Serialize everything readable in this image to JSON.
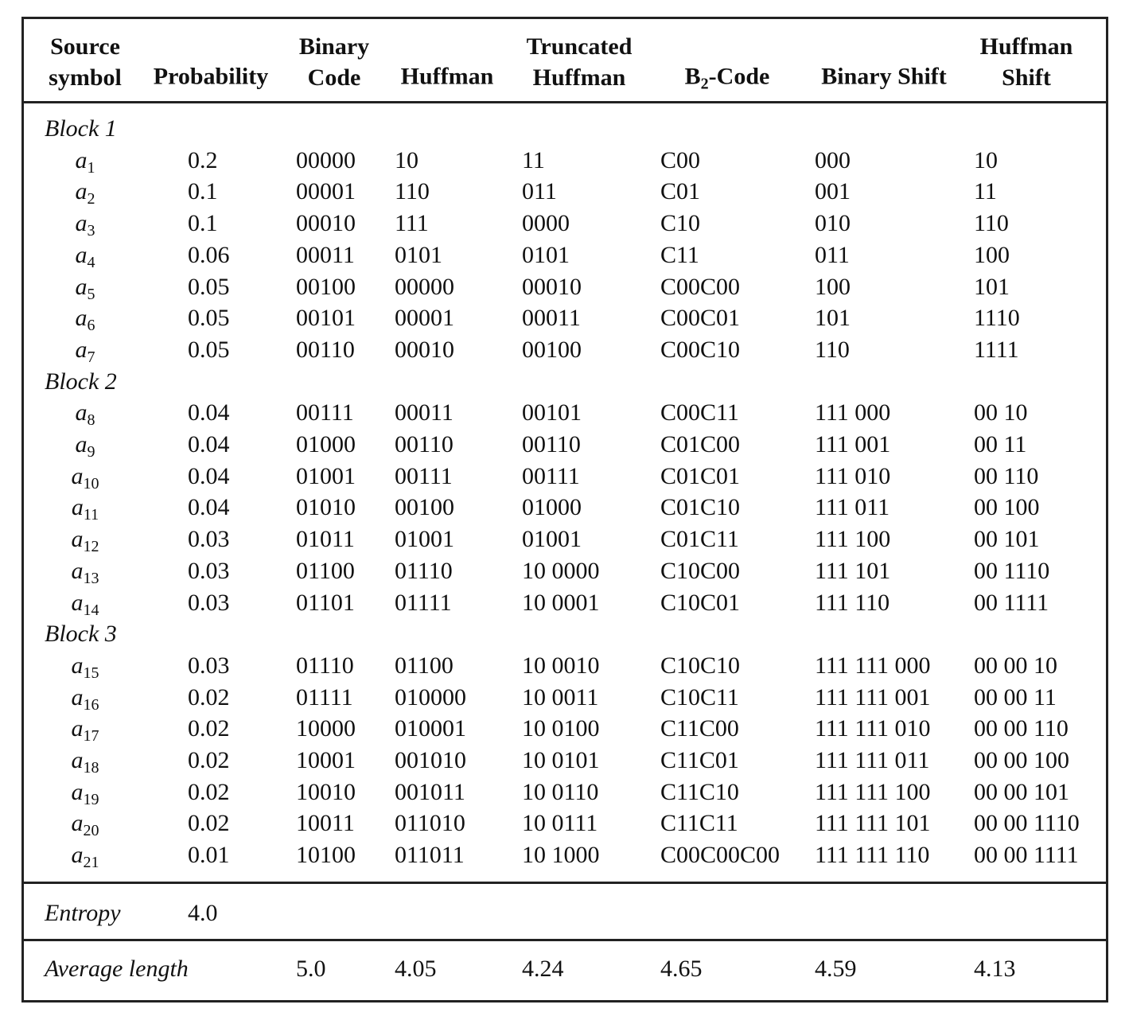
{
  "table": {
    "header": [
      {
        "lines": [
          "Source",
          "symbol"
        ]
      },
      {
        "lines": [
          "Probability"
        ]
      },
      {
        "lines": [
          "Binary",
          "Code"
        ]
      },
      {
        "lines": [
          "Huffman"
        ]
      },
      {
        "lines": [
          "Truncated",
          "Huffman"
        ]
      },
      {
        "base": "B",
        "sub": "2",
        "suffix": "-Code"
      },
      {
        "lines": [
          "Binary Shift"
        ]
      },
      {
        "lines": [
          "Huffman",
          "Shift"
        ]
      }
    ],
    "blocks": [
      {
        "label": "Block 1",
        "rows": [
          {
            "symbol": {
              "base": "a",
              "sub": "1"
            },
            "cells": [
              "0.2",
              "00000",
              "10",
              "11",
              "C00",
              "000",
              "10"
            ]
          },
          {
            "symbol": {
              "base": "a",
              "sub": "2"
            },
            "cells": [
              "0.1",
              "00001",
              "110",
              "011",
              "C01",
              "001",
              "11"
            ]
          },
          {
            "symbol": {
              "base": "a",
              "sub": "3"
            },
            "cells": [
              "0.1",
              "00010",
              "111",
              "0000",
              "C10",
              "010",
              "110"
            ]
          },
          {
            "symbol": {
              "base": "a",
              "sub": "4"
            },
            "cells": [
              "0.06",
              "00011",
              "0101",
              "0101",
              "C11",
              "011",
              "100"
            ]
          },
          {
            "symbol": {
              "base": "a",
              "sub": "5"
            },
            "cells": [
              "0.05",
              "00100",
              "00000",
              "00010",
              "C00C00",
              "100",
              "101"
            ]
          },
          {
            "symbol": {
              "base": "a",
              "sub": "6"
            },
            "cells": [
              "0.05",
              "00101",
              "00001",
              "00011",
              "C00C01",
              "101",
              "1110"
            ]
          },
          {
            "symbol": {
              "base": "a",
              "sub": "7"
            },
            "cells": [
              "0.05",
              "00110",
              "00010",
              "00100",
              "C00C10",
              "110",
              "1111"
            ]
          }
        ]
      },
      {
        "label": "Block 2",
        "rows": [
          {
            "symbol": {
              "base": "a",
              "sub": "8"
            },
            "cells": [
              "0.04",
              "00111",
              "00011",
              "00101",
              "C00C11",
              "111 000",
              "00 10"
            ]
          },
          {
            "symbol": {
              "base": "a",
              "sub": "9"
            },
            "cells": [
              "0.04",
              "01000",
              "00110",
              "00110",
              "C01C00",
              "111 001",
              "00 11"
            ]
          },
          {
            "symbol": {
              "base": "a",
              "sub": "10"
            },
            "cells": [
              "0.04",
              "01001",
              "00111",
              "00111",
              "C01C01",
              "111 010",
              "00 110"
            ]
          },
          {
            "symbol": {
              "base": "a",
              "sub": "11"
            },
            "cells": [
              "0.04",
              "01010",
              "00100",
              "01000",
              "C01C10",
              "111 011",
              "00 100"
            ]
          },
          {
            "symbol": {
              "base": "a",
              "sub": "12"
            },
            "cells": [
              "0.03",
              "01011",
              "01001",
              "01001",
              "C01C11",
              "111 100",
              "00 101"
            ]
          },
          {
            "symbol": {
              "base": "a",
              "sub": "13"
            },
            "cells": [
              "0.03",
              "01100",
              "01110",
              "10 0000",
              "C10C00",
              "111 101",
              "00 1110"
            ]
          },
          {
            "symbol": {
              "base": "a",
              "sub": "14"
            },
            "cells": [
              "0.03",
              "01101",
              "01111",
              "10 0001",
              "C10C01",
              "111 110",
              "00 1111"
            ]
          }
        ]
      },
      {
        "label": "Block 3",
        "rows": [
          {
            "symbol": {
              "base": "a",
              "sub": "15"
            },
            "cells": [
              "0.03",
              "01110",
              "01100",
              "10 0010",
              "C10C10",
              "111 111 000",
              "00 00 10"
            ]
          },
          {
            "symbol": {
              "base": "a",
              "sub": "16"
            },
            "cells": [
              "0.02",
              "01111",
              "010000",
              "10 0011",
              "C10C11",
              "111 111 001",
              "00 00 11"
            ]
          },
          {
            "symbol": {
              "base": "a",
              "sub": "17"
            },
            "cells": [
              "0.02",
              "10000",
              "010001",
              "10 0100",
              "C11C00",
              "111 111 010",
              "00 00 110"
            ]
          },
          {
            "symbol": {
              "base": "a",
              "sub": "18"
            },
            "cells": [
              "0.02",
              "10001",
              "001010",
              "10 0101",
              "C11C01",
              "111 111 011",
              "00 00 100"
            ]
          },
          {
            "symbol": {
              "base": "a",
              "sub": "19"
            },
            "cells": [
              "0.02",
              "10010",
              "001011",
              "10 0110",
              "C11C10",
              "111 111 100",
              "00 00 101"
            ]
          },
          {
            "symbol": {
              "base": "a",
              "sub": "20"
            },
            "cells": [
              "0.02",
              "10011",
              "011010",
              "10 0111",
              "C11C11",
              "111 111 101",
              "00 00 1110"
            ]
          },
          {
            "symbol": {
              "base": "a",
              "sub": "21"
            },
            "cells": [
              "0.01",
              "10100",
              "011011",
              "10 1000",
              "C00C00C00",
              "111 111 110",
              "00 00 1111"
            ]
          }
        ]
      }
    ],
    "entropy": {
      "label": "Entropy",
      "value": "4.0"
    },
    "average_length": {
      "label": "Average length",
      "values": [
        "5.0",
        "4.05",
        "4.24",
        "4.65",
        "4.59",
        "4.13"
      ]
    }
  }
}
